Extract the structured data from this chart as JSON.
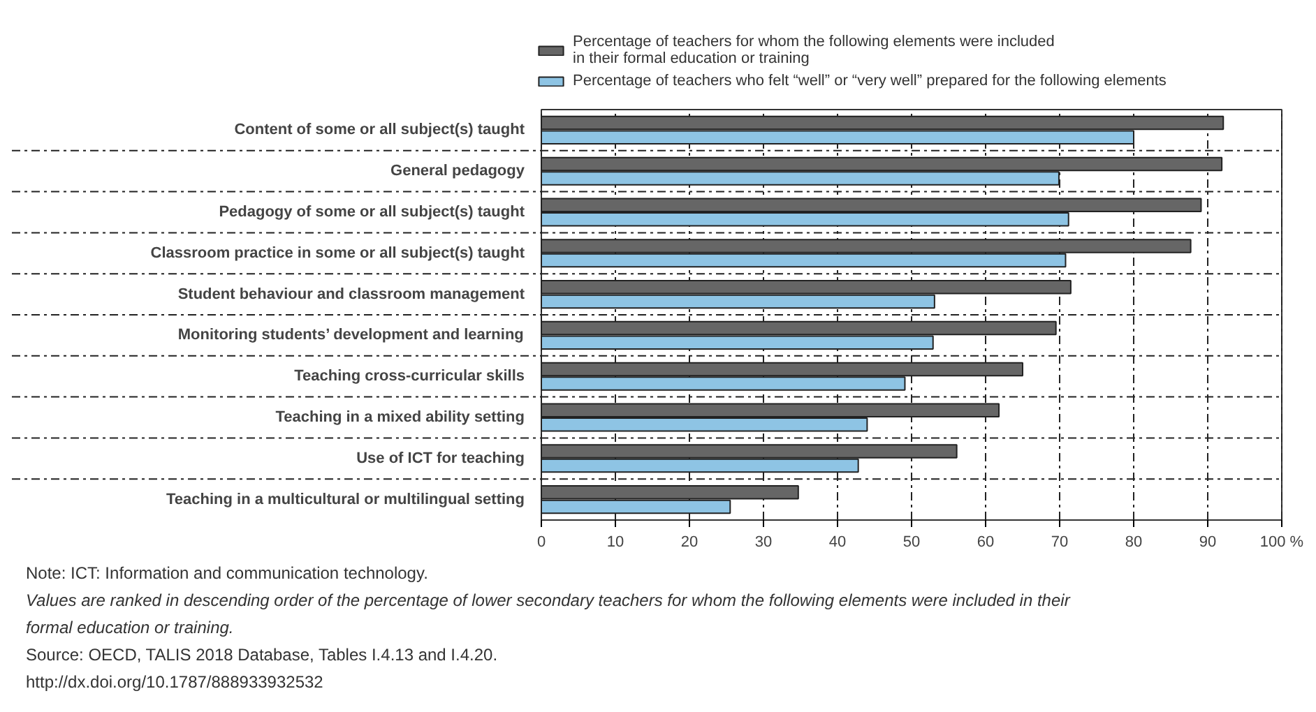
{
  "chart_data": {
    "type": "bar",
    "orientation": "horizontal",
    "categories": [
      "Content of some or all subject(s) taught",
      "General pedagogy",
      "Pedagogy of some or all subject(s) taught",
      "Classroom practice in some or all subject(s) taught",
      "Student behaviour and classroom management",
      "Monitoring students’ development and learning",
      "Teaching cross-curricular skills",
      "Teaching in a mixed ability setting",
      "Use of ICT for teaching",
      "Teaching in a multicultural or multilingual setting"
    ],
    "series": [
      {
        "name": "Percentage of teachers for whom the following elements were included\nin their formal education or training",
        "color": "#666666",
        "values": [
          92.1,
          91.9,
          89.1,
          87.7,
          71.5,
          69.5,
          65.0,
          61.8,
          56.1,
          34.7
        ]
      },
      {
        "name": "Percentage of teachers who felt “well” or “very well” prepared for the following elements",
        "color": "#8ec4e4",
        "values": [
          80.0,
          69.9,
          71.2,
          70.8,
          53.1,
          52.9,
          49.1,
          44.0,
          42.8,
          25.5
        ]
      }
    ],
    "xlim": [
      0,
      100
    ],
    "xticks": [
      0,
      10,
      20,
      30,
      40,
      50,
      60,
      70,
      80,
      90,
      {
        "value": 100,
        "label": "100 %"
      }
    ],
    "grid": true,
    "legend": "top",
    "annotations": [
      "Note: ICT: Information and communication technology.",
      "Values are ranked in descending order of the percentage of lower secondary teachers for whom the following elements were included in their",
      "formal education or training.",
      "Source: OECD, TALIS 2018 Database, Tables I.4.13 and I.4.20.",
      "http://dx.doi.org/10.1787/888933932532"
    ]
  }
}
